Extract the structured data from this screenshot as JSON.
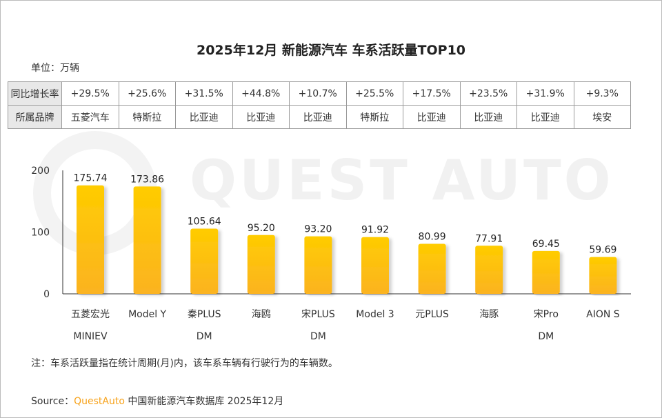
{
  "title": "2025年12月 新能源汽车 车系活跃量TOP10",
  "unit": "单位：万辆",
  "watermark": "QUEST AUTO",
  "table": {
    "row_headers": [
      "同比增长率",
      "所属品牌"
    ],
    "growth": [
      "+29.5%",
      "+25.6%",
      "+31.5%",
      "+44.8%",
      "+10.7%",
      "+25.5%",
      "+17.5%",
      "+23.5%",
      "+31.9%",
      "+9.3%"
    ],
    "brand": [
      "五菱汽车",
      "特斯拉",
      "比亚迪",
      "比亚迪",
      "比亚迪",
      "特斯拉",
      "比亚迪",
      "比亚迪",
      "比亚迪",
      "埃安"
    ]
  },
  "chart_data": {
    "type": "bar",
    "categories": [
      [
        "五菱宏光",
        "MINIEV"
      ],
      [
        "Model Y"
      ],
      [
        "秦PLUS",
        "DM"
      ],
      [
        "海鸥"
      ],
      [
        "宋PLUS",
        "DM"
      ],
      [
        "Model 3"
      ],
      [
        "元PLUS"
      ],
      [
        "海豚"
      ],
      [
        "宋Pro",
        "DM"
      ],
      [
        "AION S"
      ]
    ],
    "values": [
      175.74,
      173.86,
      105.64,
      95.2,
      93.2,
      91.92,
      80.99,
      77.91,
      69.45,
      59.69
    ],
    "value_labels": [
      "175.74",
      "173.86",
      "105.64",
      "95.20",
      "93.20",
      "91.92",
      "80.99",
      "77.91",
      "69.45",
      "59.69"
    ],
    "ylim": [
      0,
      200
    ],
    "yticks": [
      0,
      100,
      200
    ],
    "grid": false,
    "colors": {
      "bar_top": "#ffcc00",
      "bar_bottom": "#fbb321"
    }
  },
  "note": "注：车系活跃量指在统计周期(月)内，该车系车辆有行驶行为的车辆数。",
  "source": {
    "prefix": "Source：",
    "brand": "QuestAuto",
    "text": " 中国新能源汽车数据库 2025年12月",
    "brand_color": "#f7a21a"
  }
}
